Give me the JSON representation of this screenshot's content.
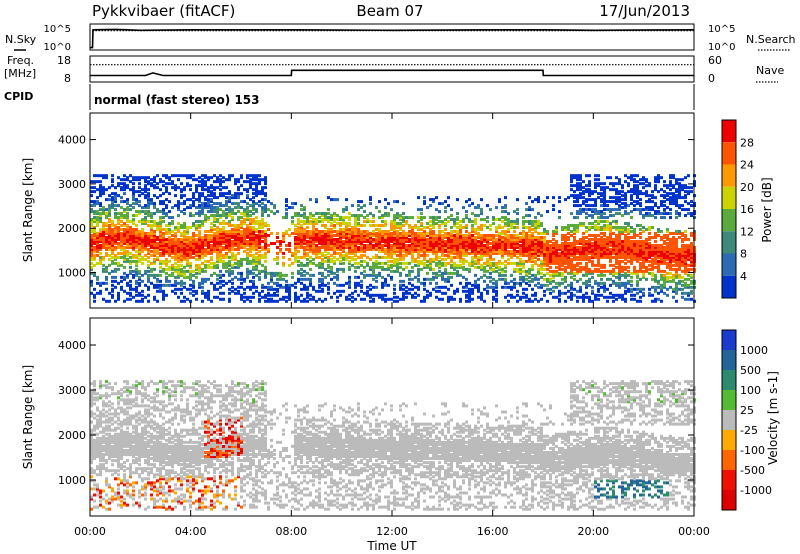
{
  "header": {
    "station": "Pykkvibaer (fitACF)",
    "beam": "Beam 07",
    "date": "17/Jun/2013"
  },
  "top_panels": {
    "nsky_label": "N.Sky",
    "nsearch_label": "N.Search",
    "freq_label_1": "Freq.",
    "freq_label_2": "[MHz]",
    "nave_label": "Nave",
    "cpid_label": "CPID",
    "cpid_text": "normal (fast stereo) 153",
    "noise_ticks_left": [
      "10^5",
      "10^0"
    ],
    "noise_ticks_right": [
      "10^5",
      "10^0"
    ],
    "freq_ticks": [
      "18",
      "8"
    ],
    "nave_ticks": [
      "60",
      "0"
    ]
  },
  "chart_data": [
    {
      "type": "line",
      "panel": "noise",
      "series": [
        {
          "name": "N.Sky",
          "x_hours": [
            0,
            0.1,
            0.12,
            1,
            2,
            4,
            8,
            12,
            16,
            18,
            20,
            24
          ],
          "y": [
            0.5,
            0.5,
            4.2,
            4.3,
            4.1,
            4.2,
            4.2,
            4.1,
            4.2,
            4.2,
            4.1,
            4.2
          ]
        },
        {
          "name": "N.Search",
          "x_hours": [
            0.1,
            2,
            4,
            8,
            12,
            16,
            20,
            24
          ],
          "y": [
            4.0,
            4.0,
            4.0,
            4.0,
            4.0,
            4.0,
            4.0,
            4.0
          ]
        }
      ]
    },
    {
      "type": "line",
      "panel": "frequency",
      "series": [
        {
          "name": "Freq",
          "x_hours": [
            0,
            0.01,
            2.2,
            2.5,
            2.9,
            8,
            8.01,
            18,
            18.01,
            24
          ],
          "y_mhz": [
            10.5,
            10.5,
            10.5,
            11.5,
            10.5,
            10.5,
            12.5,
            12.5,
            10.5,
            10.5
          ]
        },
        {
          "name": "Nave",
          "x_hours": [
            0,
            24
          ],
          "y": [
            40,
            40
          ]
        }
      ]
    },
    {
      "type": "heatmap",
      "panel": "power",
      "xlabel": "",
      "ylabel": "Slant Range [km]",
      "xlim_hours": [
        0,
        24
      ],
      "ylim_km": [
        200,
        4600
      ],
      "yticks": [
        "1000",
        "2000",
        "3000",
        "4000"
      ],
      "colorbar_label": "Power [dB]",
      "colorbar_ticks": [
        "4",
        "8",
        "12",
        "16",
        "20",
        "24",
        "28"
      ],
      "colorbar_colors": [
        "#0033cc",
        "#2b6bb3",
        "#3d8a7a",
        "#5aab3d",
        "#ccd400",
        "#ff9900",
        "#ff5500",
        "#ee0000"
      ]
    },
    {
      "type": "heatmap",
      "panel": "velocity",
      "xlabel": "Time UT",
      "ylabel": "Slant Range [km]",
      "xlim_hours": [
        0,
        24
      ],
      "ylim_km": [
        200,
        4600
      ],
      "yticks": [
        "1000",
        "2000",
        "3000",
        "4000"
      ],
      "xticks": [
        "00:00",
        "04:00",
        "08:00",
        "12:00",
        "16:00",
        "20:00",
        "00:00"
      ],
      "colorbar_label": "Velocity [m s-1]",
      "colorbar_ticks": [
        "1000",
        "500",
        "100",
        "25",
        "-25",
        "-100",
        "-500",
        "-1000"
      ],
      "colorbar_colors": [
        "#1a3ccc",
        "#226699",
        "#2e8a6e",
        "#55bb33",
        "#bbbbbb",
        "#ffaa00",
        "#ff6600",
        "#ee1100",
        "#dd0000"
      ]
    }
  ]
}
